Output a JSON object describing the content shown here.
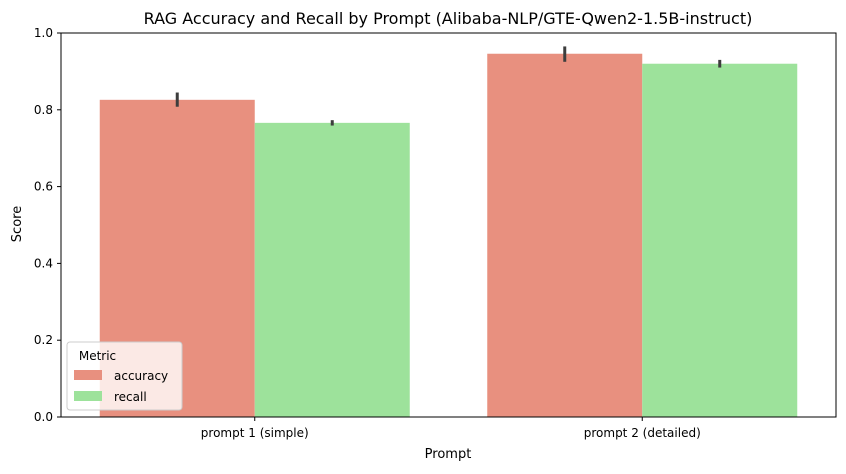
{
  "chart_data": {
    "type": "bar",
    "title": "RAG Accuracy and Recall by Prompt (Alibaba-NLP/GTE-Qwen2-1.5B-instruct)",
    "xlabel": "Prompt",
    "ylabel": "Score",
    "categories": [
      "prompt 1 (simple)",
      "prompt 2 (detailed)"
    ],
    "ylim": [
      0,
      1.0
    ],
    "yticks": [
      0.0,
      0.2,
      0.4,
      0.6,
      0.8,
      1.0
    ],
    "ytick_labels": [
      "0.0",
      "0.2",
      "0.4",
      "0.6",
      "0.8",
      "1.0"
    ],
    "series": [
      {
        "name": "accuracy",
        "color": "#e8907f",
        "values": [
          0.826,
          0.946
        ],
        "error": [
          [
            0.808,
            0.845
          ],
          [
            0.925,
            0.965
          ]
        ]
      },
      {
        "name": "recall",
        "color": "#9de29b",
        "values": [
          0.766,
          0.92
        ],
        "error": [
          [
            0.759,
            0.773
          ],
          [
            0.91,
            0.93
          ]
        ]
      }
    ],
    "legend": {
      "title": "Metric",
      "placement": "lower-left"
    },
    "grid": false
  }
}
